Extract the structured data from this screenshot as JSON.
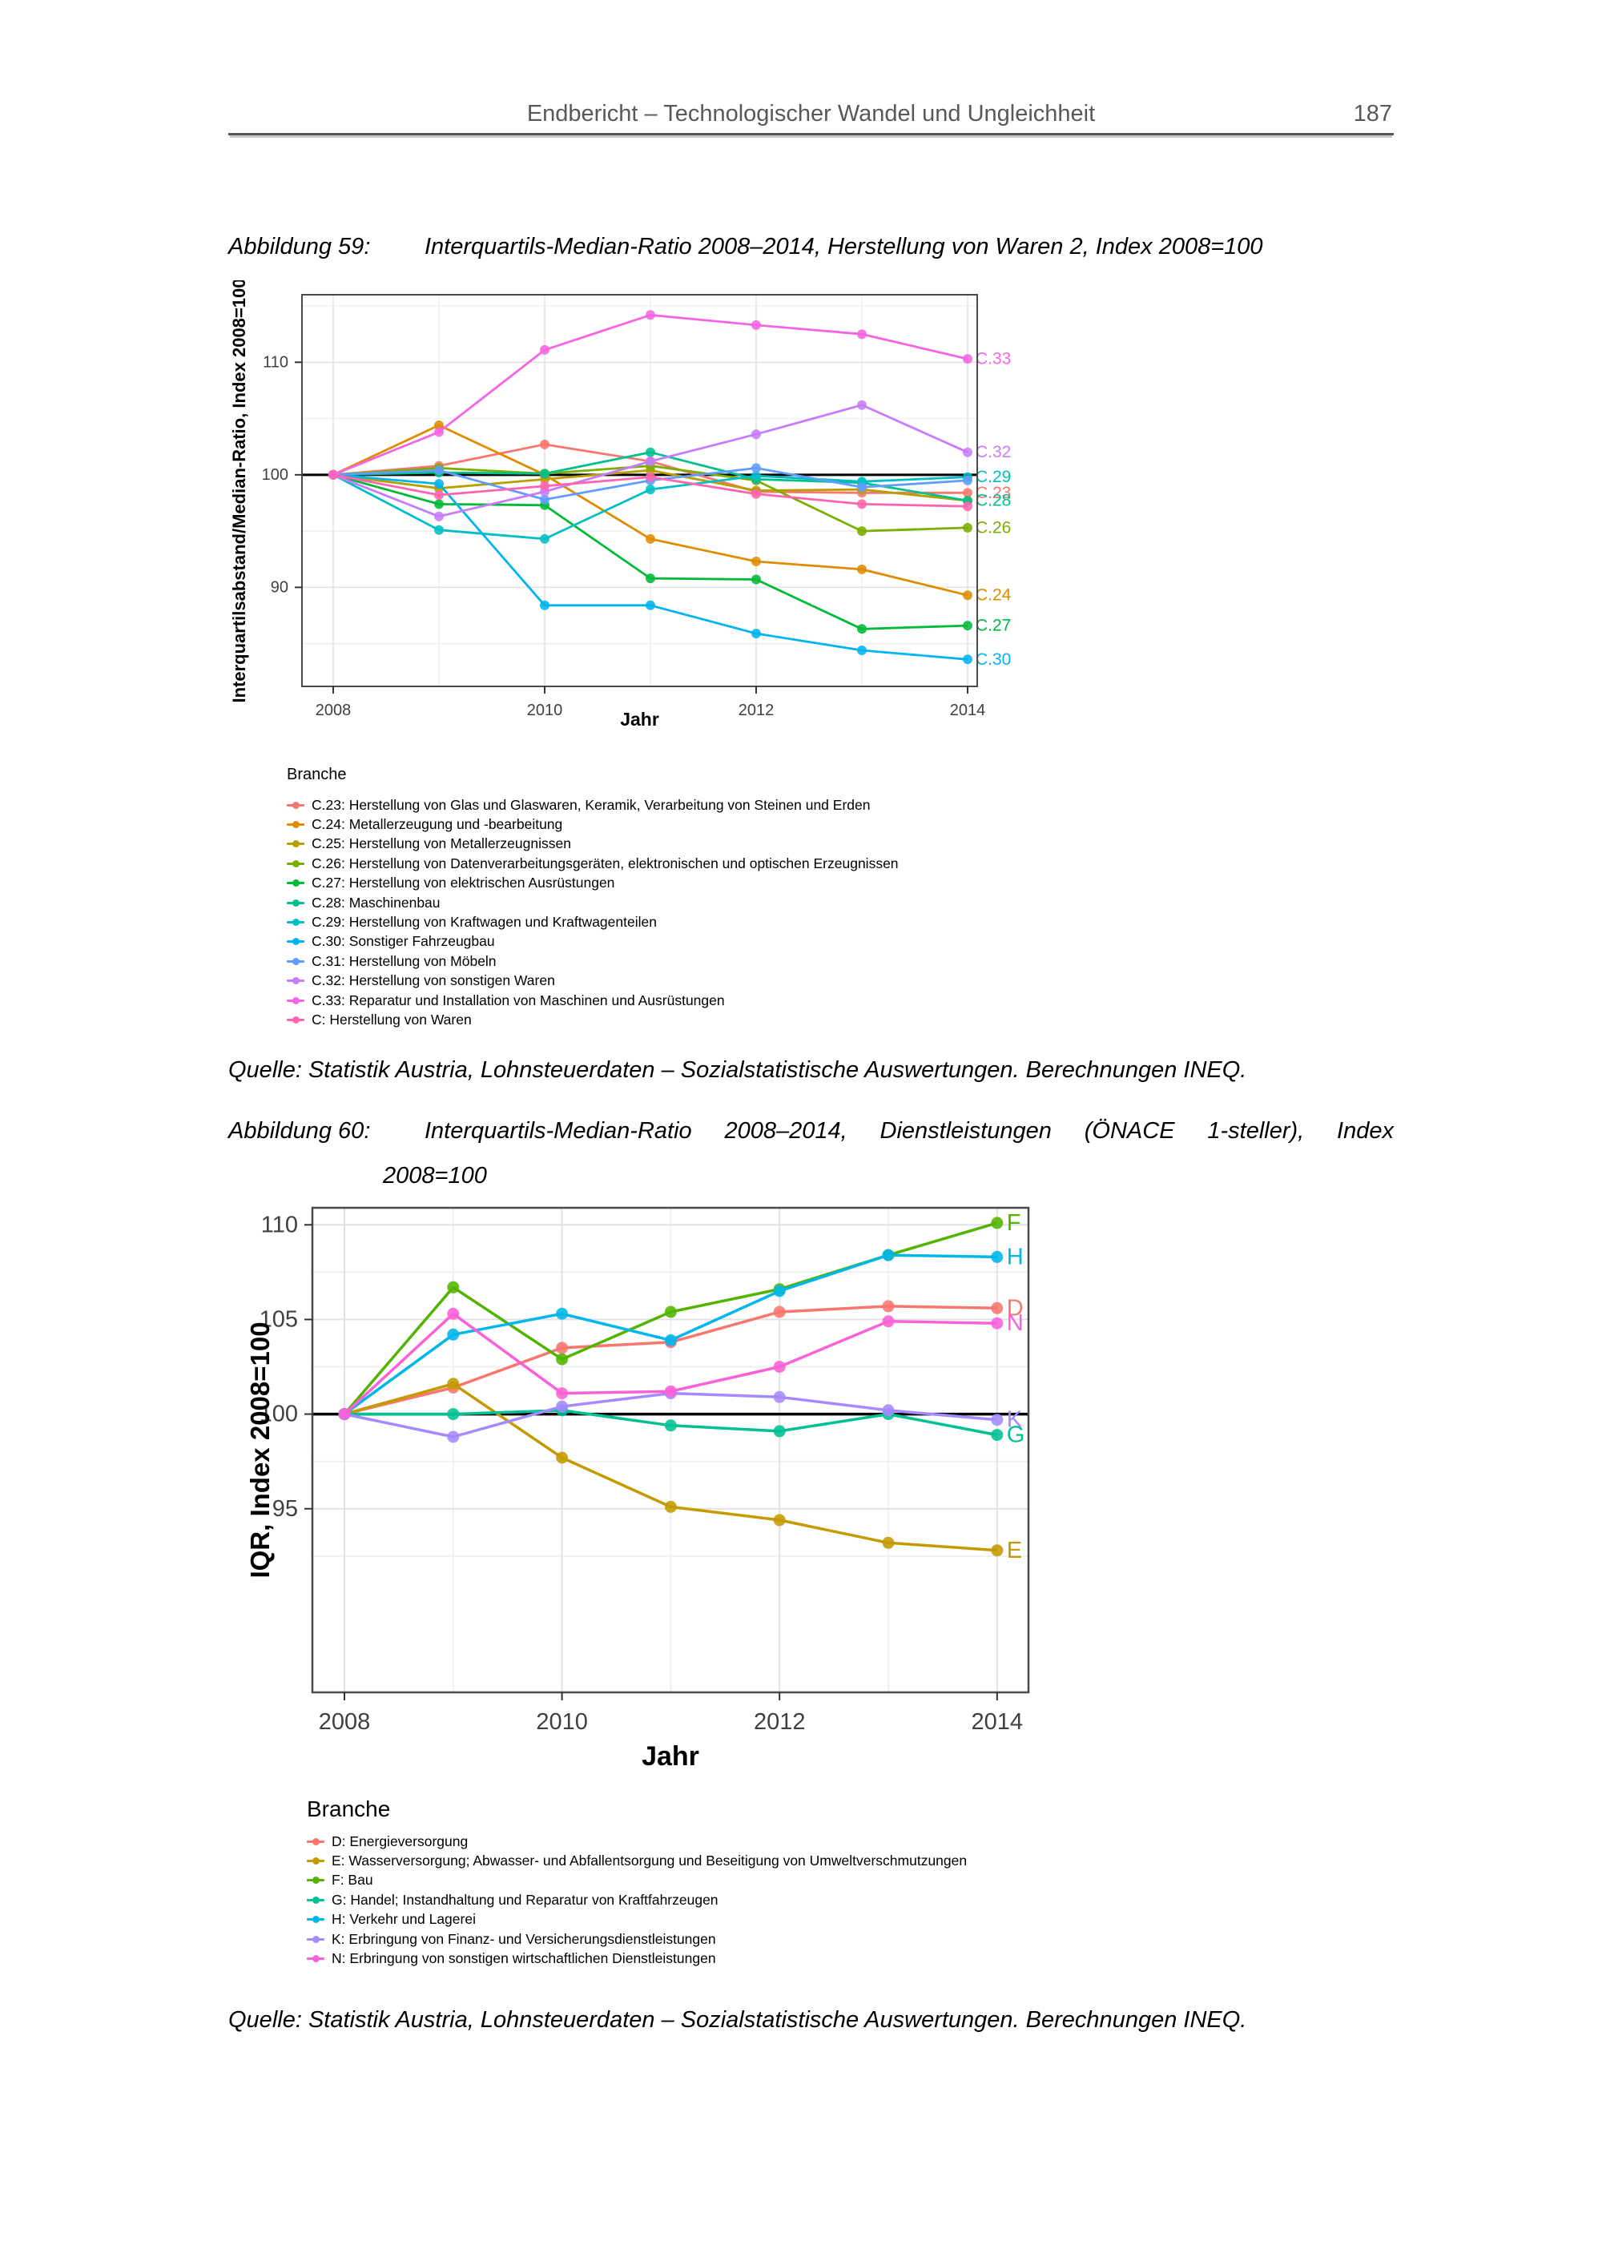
{
  "page": {
    "header": {
      "title": "Endbericht – Technologischer Wandel und Ungleichheit",
      "page_number": "187"
    },
    "figure59": {
      "label": "Abbildung 59:",
      "title": "Interquartils-Median-Ratio 2008–2014, Herstellung von Waren 2, Index 2008=100",
      "source": "Quelle: Statistik Austria, Lohnsteuerdaten – Sozialstatistische Auswertungen. Berechnungen INEQ."
    },
    "figure60": {
      "label": "Abbildung 60:",
      "title_line1": "Interquartils-Median-Ratio 2008–2014, Dienstleistungen (ÖNACE 1-steller), Index",
      "title_line2": "2008=100",
      "source": "Quelle: Statistik Austria, Lohnsteuerdaten – Sozialstatistische Auswertungen. Berechnungen INEQ."
    }
  },
  "chart_data": [
    {
      "id": "fig59",
      "type": "line",
      "title": "Interquartils-Median-Ratio 2008–2014, Herstellung von Waren 2, Index 2008=100",
      "x": [
        2008,
        2009,
        2010,
        2011,
        2012,
        2013,
        2014
      ],
      "xlabel": "Jahr",
      "ylabel": "Interquartilsabstand/Median-Ratio, Index 2008=100",
      "ylim": [
        81.2,
        116.0
      ],
      "yticks": [
        90,
        100,
        110
      ],
      "yticks_minor": [
        85,
        95,
        105,
        115
      ],
      "xticks": [
        2008,
        2010,
        2012,
        2014
      ],
      "xticks_minor": [
        2009,
        2011,
        2013
      ],
      "baseline": 100,
      "grid": true,
      "legend_title": "Branche",
      "legend_position": "below",
      "series": [
        {
          "name": "C.23",
          "label": "C.23: Herstellung von Glas und Glaswaren, Keramik, Verarbeitung von Steinen und Erden",
          "color": "#F8766D",
          "end_label": true,
          "values": [
            100,
            100.8,
            102.7,
            101.2,
            98.5,
            98.4,
            98.4
          ]
        },
        {
          "name": "C.24",
          "label": "C.24: Metallerzeugung und -bearbeitung",
          "color": "#DE8C00",
          "end_label": true,
          "values": [
            100,
            104.4,
            100.0,
            94.3,
            92.3,
            91.6,
            89.3
          ]
        },
        {
          "name": "C.25",
          "label": "C.25: Herstellung von Metallerzeugnissen",
          "color": "#B79F00",
          "end_label": false,
          "values": [
            100,
            98.8,
            99.6,
            100.4,
            98.6,
            98.7,
            97.7
          ]
        },
        {
          "name": "C.26",
          "label": "C.26: Herstellung von Datenverarbeitungsgeräten, elektronischen und optischen Erzeugnissen",
          "color": "#7CAE00",
          "end_label": true,
          "values": [
            100,
            100.6,
            100.1,
            100.8,
            99.5,
            95.0,
            95.3
          ]
        },
        {
          "name": "C.27",
          "label": "C.27: Herstellung von elektrischen Ausrüstungen",
          "color": "#00BA38",
          "end_label": true,
          "values": [
            100,
            97.4,
            97.3,
            90.8,
            90.7,
            86.3,
            86.6
          ]
        },
        {
          "name": "C.28",
          "label": "C.28: Maschinenbau",
          "color": "#00C08B",
          "end_label": true,
          "values": [
            100,
            100.2,
            100.1,
            102.0,
            99.6,
            99.3,
            97.7
          ]
        },
        {
          "name": "C.29",
          "label": "C.29: Herstellung von Kraftwagen und Kraftwagenteilen",
          "color": "#00BFC4",
          "end_label": true,
          "values": [
            100,
            95.1,
            94.3,
            98.7,
            99.9,
            99.4,
            99.8
          ]
        },
        {
          "name": "C.30",
          "label": "C.30: Sonstiger Fahrzeugbau",
          "color": "#00B4F0",
          "end_label": true,
          "values": [
            100,
            99.2,
            88.4,
            88.4,
            85.9,
            84.4,
            83.6
          ]
        },
        {
          "name": "C.31",
          "label": "C.31: Herstellung von Möbeln",
          "color": "#619CFF",
          "end_label": false,
          "values": [
            100,
            100.4,
            97.8,
            99.5,
            100.6,
            98.9,
            99.5
          ]
        },
        {
          "name": "C.32",
          "label": "C.32: Herstellung von sonstigen Waren",
          "color": "#C77CFF",
          "end_label": true,
          "values": [
            100,
            96.3,
            98.5,
            101.2,
            103.6,
            106.2,
            102.0
          ]
        },
        {
          "name": "C.33",
          "label": "C.33: Reparatur und Installation von Maschinen und Ausrüstungen",
          "color": "#F564E3",
          "end_label": true,
          "values": [
            100,
            103.8,
            111.1,
            114.2,
            113.3,
            112.5,
            110.3
          ]
        },
        {
          "name": "C",
          "label": "C: Herstellung von Waren",
          "color": "#FF64B0",
          "end_label": false,
          "values": [
            100,
            98.2,
            99.0,
            99.8,
            98.3,
            97.4,
            97.2
          ]
        }
      ]
    },
    {
      "id": "fig60",
      "type": "line",
      "title": "Interquartils-Median-Ratio 2008–2014, Dienstleistungen (ÖNACE 1-steller), Index 2008=100",
      "x": [
        2008,
        2009,
        2010,
        2011,
        2012,
        2013,
        2014
      ],
      "xlabel": "Jahr",
      "ylabel": "IQR, Index 2008=100",
      "ylim": [
        85.3,
        110.9
      ],
      "yticks": [
        95,
        100,
        105,
        110
      ],
      "yticks_minor": [
        92.5,
        97.5,
        102.5,
        107.5
      ],
      "xticks": [
        2008,
        2010,
        2012,
        2014
      ],
      "xticks_minor": [
        2009,
        2011,
        2013
      ],
      "baseline": 100,
      "grid": true,
      "legend_title": "Branche",
      "legend_position": "below",
      "series": [
        {
          "name": "D",
          "label": "D: Energieversorgung",
          "color": "#F8766D",
          "end_label": true,
          "values": [
            100,
            101.4,
            103.5,
            103.8,
            105.4,
            105.7,
            105.6
          ]
        },
        {
          "name": "E",
          "label": "E: Wasserversorgung; Abwasser- und Abfallentsorgung und Beseitigung von Umweltverschmutzungen",
          "color": "#C49A00",
          "end_label": true,
          "values": [
            100,
            101.6,
            97.7,
            95.1,
            94.4,
            93.2,
            92.8
          ]
        },
        {
          "name": "F",
          "label": "F: Bau",
          "color": "#53B400",
          "end_label": true,
          "values": [
            100,
            106.7,
            102.9,
            105.4,
            106.6,
            108.4,
            110.1
          ]
        },
        {
          "name": "G",
          "label": "G: Handel; Instandhaltung und Reparatur von Kraftfahrzeugen",
          "color": "#00C094",
          "end_label": true,
          "values": [
            100,
            100.0,
            100.2,
            99.4,
            99.1,
            100.0,
            98.9
          ]
        },
        {
          "name": "H",
          "label": "H: Verkehr und Lagerei",
          "color": "#00B6EB",
          "end_label": true,
          "values": [
            100,
            104.2,
            105.3,
            103.9,
            106.5,
            108.4,
            108.3
          ]
        },
        {
          "name": "K",
          "label": "K: Erbringung von Finanz- und Versicherungsdienstleistungen",
          "color": "#A58AFF",
          "end_label": true,
          "values": [
            100,
            98.8,
            100.4,
            101.1,
            100.9,
            100.2,
            99.7
          ]
        },
        {
          "name": "N",
          "label": "N: Erbringung von sonstigen wirtschaftlichen Dienstleistungen",
          "color": "#FB61D7",
          "end_label": true,
          "values": [
            100,
            105.3,
            101.1,
            101.2,
            102.5,
            104.9,
            104.8
          ]
        }
      ]
    }
  ]
}
